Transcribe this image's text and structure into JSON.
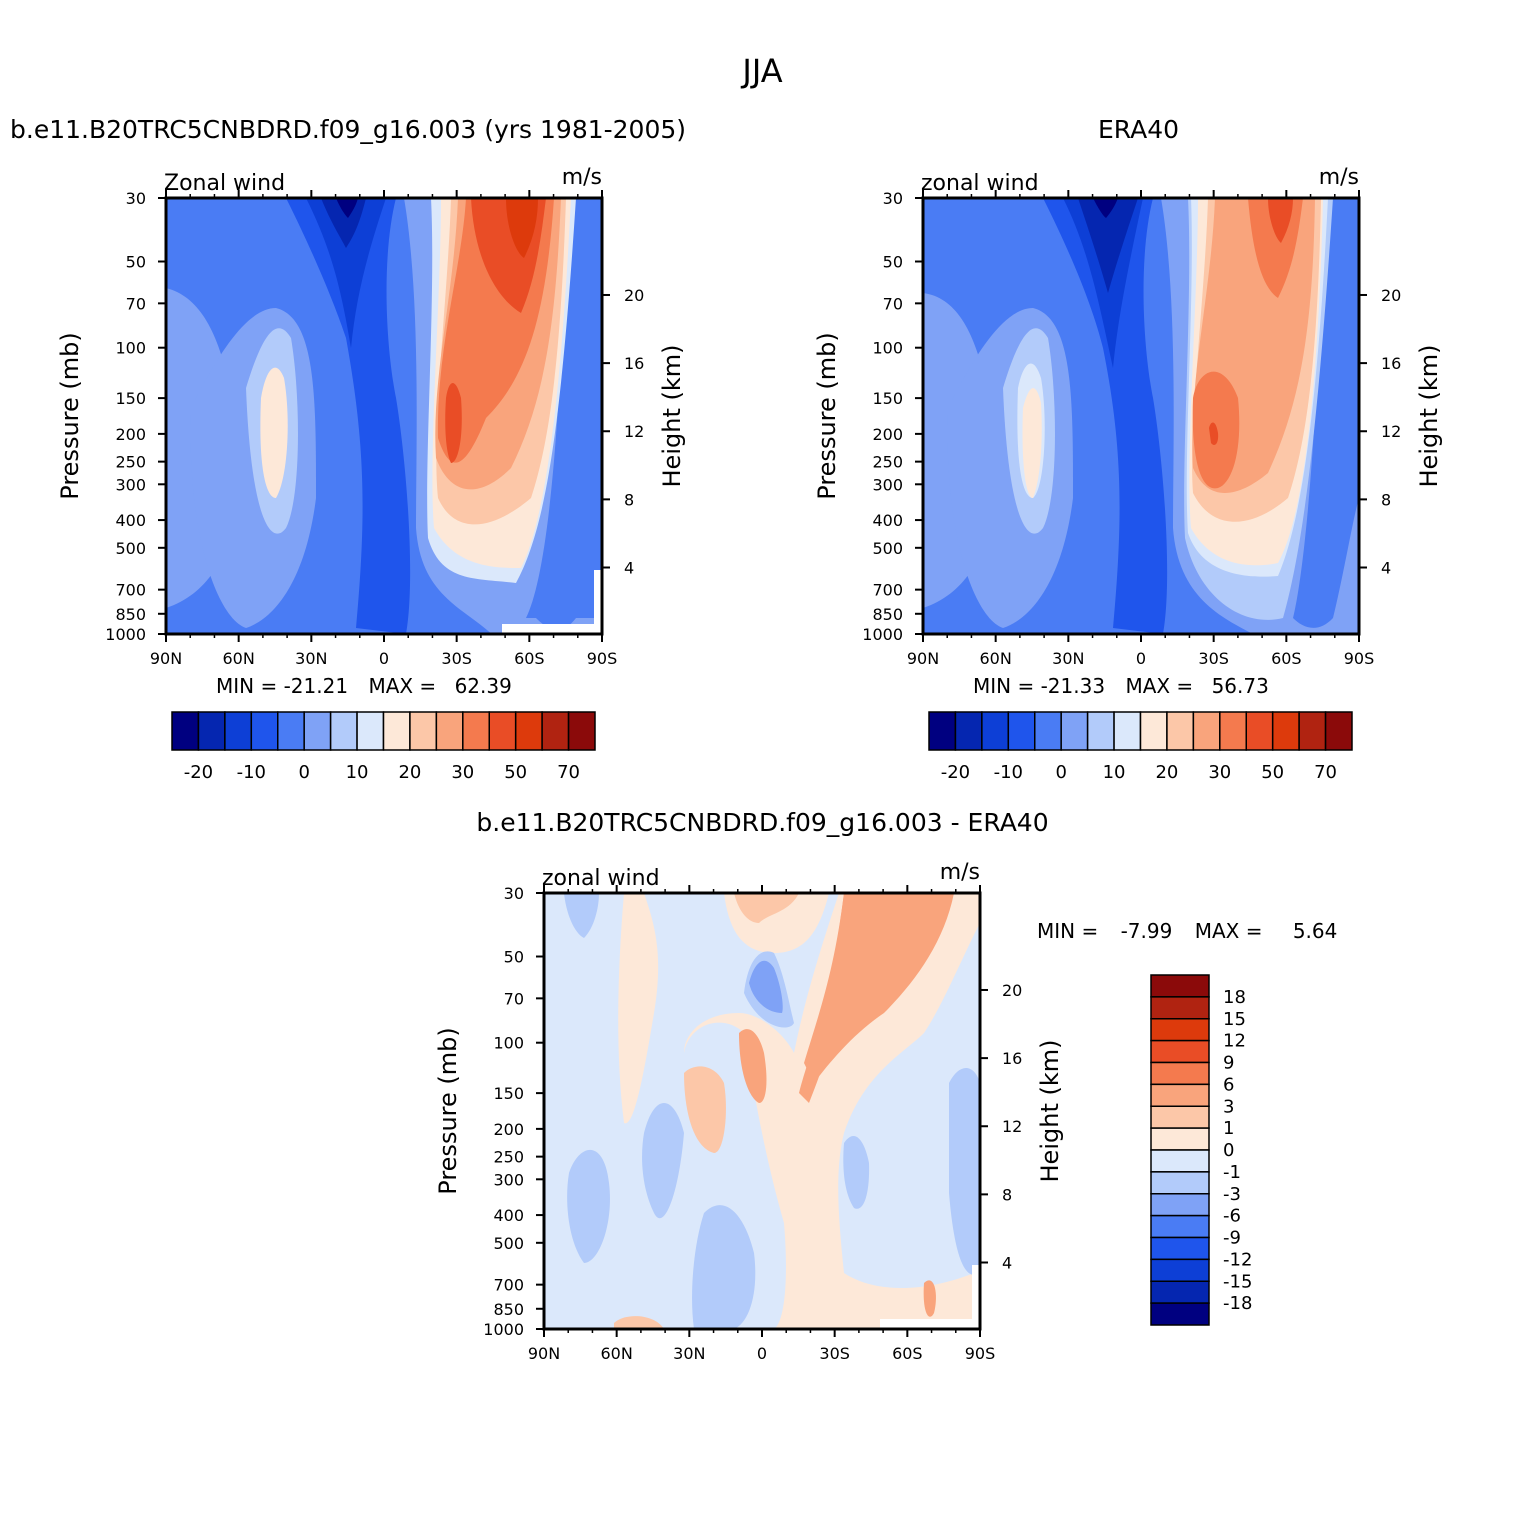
{
  "page": {
    "title": "JJA"
  },
  "colors": {
    "palette14": [
      "#000080",
      "#0526b0",
      "#0d3fd6",
      "#1f55ec",
      "#4a7cf4",
      "#7fa2f6",
      "#b2cbfa",
      "#dbe8fb",
      "#fde8d8",
      "#fcc7a8",
      "#f9a47c",
      "#f47a4e",
      "#e94d26",
      "#dd3a0c",
      "#b02311",
      "#8b0a0a"
    ],
    "land_mask": "#ffffff"
  },
  "panels": [
    {
      "id": "model",
      "title": "b.e11.B20TRC5CNBDRD.f09_g16.003 (yrs 1981-2005)",
      "left_label": "Zonal wind",
      "right_label": "m/s",
      "ylabel": "Pressure (mb)",
      "ylabel_right": "Height (km)",
      "min_label": "MIN =",
      "min_value": "-21.21",
      "max_label": "MAX =",
      "max_value": "62.39"
    },
    {
      "id": "obs",
      "title": "ERA40",
      "left_label": "zonal wind",
      "right_label": "m/s",
      "ylabel": "Pressure (mb)",
      "ylabel_right": "Height (km)",
      "min_label": "MIN =",
      "min_value": "-21.33",
      "max_label": "MAX =",
      "max_value": "56.73"
    },
    {
      "id": "diff",
      "title": "b.e11.B20TRC5CNBDRD.f09_g16.003 - ERA40",
      "left_label": "zonal wind",
      "right_label": "m/s",
      "ylabel": "Pressure (mb)",
      "ylabel_right": "Height (km)",
      "min_label": "MIN =",
      "min_value": "-7.99",
      "max_label": "MAX =",
      "max_value": "5.64"
    }
  ],
  "chart_data": [
    {
      "type": "heatmap",
      "title": "b.e11.B20TRC5CNBDRD.f09_g16.003 (yrs 1981-2005)",
      "subtitle": "Zonal wind",
      "units": "m/s",
      "xlabel": "",
      "ylabel": "Pressure (mb)",
      "ylabel_right": "Height (km)",
      "x_ticks": [
        "90N",
        "60N",
        "30N",
        "0",
        "30S",
        "60S",
        "90S"
      ],
      "x_values": [
        90,
        60,
        30,
        0,
        -30,
        -60,
        -90
      ],
      "y_ticks": [
        30,
        50,
        70,
        100,
        150,
        200,
        250,
        300,
        400,
        500,
        700,
        850,
        1000
      ],
      "y_scale": "log",
      "y_range": [
        1000,
        30
      ],
      "height_ticks": [
        20,
        16,
        12,
        8,
        4
      ],
      "min": -21.21,
      "max": 62.39,
      "colorbar_levels": [
        -25,
        -20,
        -15,
        -10,
        -5,
        0,
        5,
        10,
        15,
        20,
        25,
        30,
        40,
        50,
        60,
        70
      ],
      "colorbar_labels": [
        "-20",
        "-10",
        "0",
        "10",
        "20",
        "30",
        "50",
        "70"
      ]
    },
    {
      "type": "heatmap",
      "title": "ERA40",
      "subtitle": "zonal wind",
      "units": "m/s",
      "xlabel": "",
      "ylabel": "Pressure (mb)",
      "ylabel_right": "Height (km)",
      "x_ticks": [
        "90N",
        "60N",
        "30N",
        "0",
        "30S",
        "60S",
        "90S"
      ],
      "x_values": [
        90,
        60,
        30,
        0,
        -30,
        -60,
        -90
      ],
      "y_ticks": [
        30,
        50,
        70,
        100,
        150,
        200,
        250,
        300,
        400,
        500,
        700,
        850,
        1000
      ],
      "y_scale": "log",
      "y_range": [
        1000,
        30
      ],
      "height_ticks": [
        20,
        16,
        12,
        8,
        4
      ],
      "min": -21.33,
      "max": 56.73,
      "colorbar_levels": [
        -25,
        -20,
        -15,
        -10,
        -5,
        0,
        5,
        10,
        15,
        20,
        25,
        30,
        40,
        50,
        60,
        70
      ],
      "colorbar_labels": [
        "-20",
        "-10",
        "0",
        "10",
        "20",
        "30",
        "50",
        "70"
      ]
    },
    {
      "type": "heatmap",
      "title": "b.e11.B20TRC5CNBDRD.f09_g16.003 - ERA40",
      "subtitle": "zonal wind",
      "units": "m/s",
      "xlabel": "",
      "ylabel": "Pressure (mb)",
      "ylabel_right": "Height (km)",
      "x_ticks": [
        "90N",
        "60N",
        "30N",
        "0",
        "30S",
        "60S",
        "90S"
      ],
      "x_values": [
        90,
        60,
        30,
        0,
        -30,
        -60,
        -90
      ],
      "y_ticks": [
        30,
        50,
        70,
        100,
        150,
        200,
        250,
        300,
        400,
        500,
        700,
        850,
        1000
      ],
      "y_scale": "log",
      "y_range": [
        1000,
        30
      ],
      "height_ticks": [
        20,
        16,
        12,
        8,
        4
      ],
      "min": -7.99,
      "max": 5.64,
      "colorbar_levels": [
        -18,
        -15,
        -12,
        -9,
        -6,
        -3,
        -1,
        0,
        1,
        3,
        6,
        9,
        12,
        15,
        18
      ],
      "colorbar_labels": [
        "18",
        "15",
        "12",
        "9",
        "6",
        "3",
        "1",
        "0",
        "-1",
        "-3",
        "-6",
        "-9",
        "-12",
        "-15",
        "-18"
      ],
      "colorbar_colors": [
        "#000080",
        "#0526b0",
        "#0d3fd6",
        "#1f55ec",
        "#4a7cf4",
        "#7fa2f6",
        "#b2cbfa",
        "#dbe8fb",
        "#fde8d8",
        "#fcc7a8",
        "#f9a47c",
        "#f47a4e",
        "#e94d26",
        "#dd3a0c",
        "#b02311",
        "#8b0a0a"
      ]
    }
  ]
}
